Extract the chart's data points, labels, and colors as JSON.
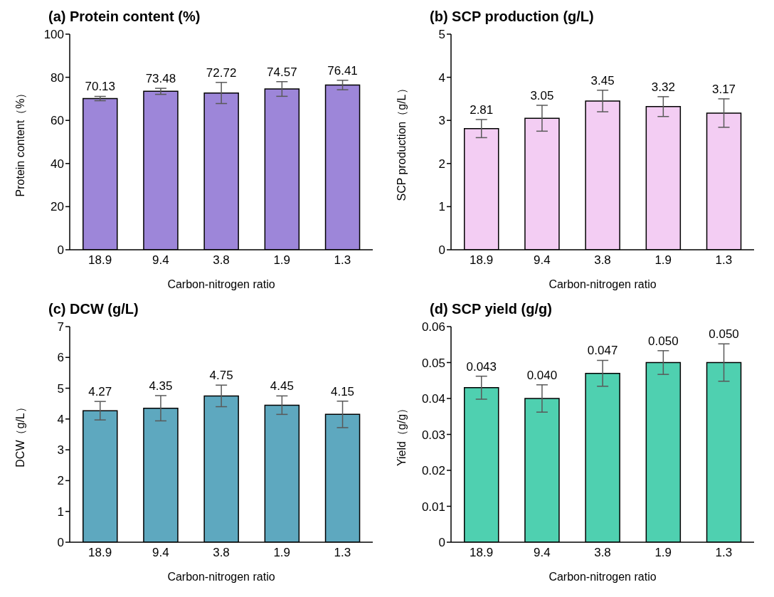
{
  "chart_data": [
    {
      "type": "bar",
      "title": "(a) Protein content (%)",
      "xlabel": "Carbon-nitrogen ratio",
      "ylabel": "Protein content（%）",
      "categories": [
        "18.9",
        "9.4",
        "3.8",
        "1.9",
        "1.3"
      ],
      "values": [
        70.13,
        73.48,
        72.72,
        74.57,
        76.41
      ],
      "errors": [
        1.0,
        1.4,
        4.9,
        3.4,
        2.2
      ],
      "color": "#9d86d9",
      "ylim": [
        0,
        100
      ],
      "yticks": [
        0,
        20,
        40,
        60,
        80,
        100
      ],
      "data_labels": true
    },
    {
      "type": "bar",
      "title": "(b) SCP production (g/L)",
      "xlabel": "Carbon-nitrogen ratio",
      "ylabel": "SCP production（g/L）",
      "categories": [
        "18.9",
        "9.4",
        "3.8",
        "1.9",
        "1.3"
      ],
      "values": [
        2.81,
        3.05,
        3.45,
        3.32,
        3.17
      ],
      "errors": [
        0.21,
        0.3,
        0.25,
        0.23,
        0.33
      ],
      "color": "#f3cdf3",
      "ylim": [
        0,
        5
      ],
      "yticks": [
        0,
        1,
        2,
        3,
        4,
        5
      ],
      "data_labels": true
    },
    {
      "type": "bar",
      "title": "(c) DCW (g/L)",
      "xlabel": "Carbon-nitrogen ratio",
      "ylabel": "DCW（g/L）",
      "categories": [
        "18.9",
        "9.4",
        "3.8",
        "1.9",
        "1.3"
      ],
      "values": [
        4.27,
        4.35,
        4.75,
        4.45,
        4.15
      ],
      "errors": [
        0.3,
        0.41,
        0.35,
        0.3,
        0.43
      ],
      "color": "#5ea8bf",
      "ylim": [
        0,
        7
      ],
      "yticks": [
        0,
        1,
        2,
        3,
        4,
        5,
        6,
        7
      ],
      "data_labels": true
    },
    {
      "type": "bar",
      "title": "(d) SCP yield (g/g)",
      "xlabel": "Carbon-nitrogen ratio",
      "ylabel": "Yield（g/g）",
      "categories": [
        "18.9",
        "9.4",
        "3.8",
        "1.9",
        "1.3"
      ],
      "values": [
        0.043,
        0.04,
        0.047,
        0.05,
        0.05
      ],
      "value_labels": [
        "0.043",
        "0.040",
        "0.047",
        "0.050",
        "0.050"
      ],
      "errors": [
        0.0032,
        0.0038,
        0.0036,
        0.0033,
        0.0052
      ],
      "color": "#4fd0b0",
      "ylim": [
        0,
        0.06
      ],
      "yticks": [
        0,
        0.01,
        0.02,
        0.03,
        0.04,
        0.05,
        0.06
      ]
    }
  ]
}
